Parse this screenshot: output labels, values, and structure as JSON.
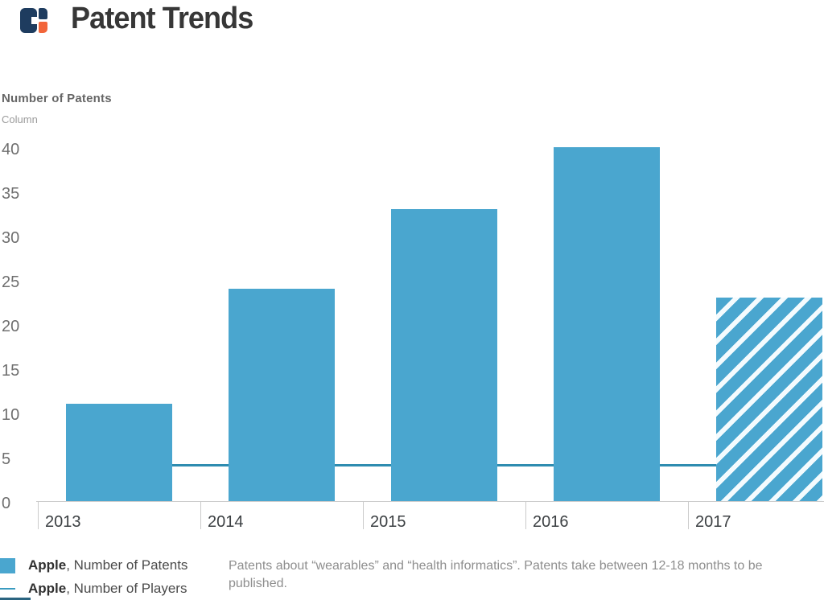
{
  "header": {
    "title": "Patent Trends",
    "logo": {
      "name": "cb-insights-logo",
      "navy": "#1E3C5F",
      "orange": "#F2653A"
    }
  },
  "chart_data": {
    "type": "bar",
    "title": "Number of Patents",
    "subtitle": "Column",
    "categories": [
      "2013",
      "2014",
      "2015",
      "2016",
      "2017"
    ],
    "series": [
      {
        "name": "Apple, Number of Patents",
        "type": "column",
        "color": "#4AA6CF",
        "values": [
          11,
          24,
          33,
          40,
          23
        ],
        "hatched_categories": [
          "2017"
        ]
      },
      {
        "name": "Apple, Number of Players",
        "type": "line",
        "color": "#2E8CB0",
        "values": [
          4,
          4,
          4,
          4,
          4
        ]
      }
    ],
    "ylim": [
      0,
      40
    ],
    "yticks": [
      0,
      5,
      10,
      15,
      20,
      25,
      30,
      35,
      40
    ],
    "grid": false,
    "legend_position": "bottom-left"
  },
  "legend": {
    "items": [
      {
        "brand": "Apple",
        "rest": ", Number of Patents",
        "swatch": "square",
        "color": "#4AA6CF"
      },
      {
        "brand": "Apple",
        "rest": ", Number of Players",
        "swatch": "line",
        "color": "#3A9BC0"
      },
      {
        "brand": "",
        "rest": "",
        "swatch": "square-partial",
        "color": "#2A6480"
      }
    ]
  },
  "note": {
    "text": "Patents about “wearables” and “health informatics”. Patents take between 12-18 months to be published."
  }
}
